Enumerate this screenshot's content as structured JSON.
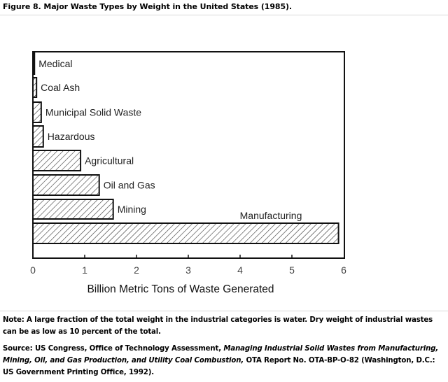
{
  "figure": {
    "title": "Figure 8. Major Waste Types by Weight in the United States (1985)."
  },
  "chart_data": {
    "type": "bar",
    "orientation": "horizontal",
    "title": "Figure 8. Major Waste Types by Weight in the United States (1985).",
    "xlabel": "Billion Metric Tons of Waste Generated",
    "ylabel": "",
    "xlim": [
      0,
      6
    ],
    "xticks": [
      0,
      1,
      2,
      3,
      4,
      5,
      6
    ],
    "grid": false,
    "legend": null,
    "fill_pattern": "diagonal-hatch",
    "categories": [
      "Medical",
      "Coal Ash",
      "Municipal Solid Waste",
      "Hazardous",
      "Agricultural",
      "Oil and Gas",
      "Mining",
      "Manufacturing"
    ],
    "values": [
      0.03,
      0.07,
      0.16,
      0.2,
      0.92,
      1.28,
      1.55,
      5.9
    ]
  },
  "footer": {
    "note": "Note: A large fraction of the total weight in the industrial categories is water. Dry weight of industrial wastes can be as low as 10 percent of the total.",
    "source_prefix": "Source: US Congress, Office of Technology Assessment, ",
    "source_title": "Managing Industrial Solid Wastes from Manufacturing, Mining, Oil, and Gas Production, and Utility Coal Combustion,",
    "source_suffix": " OTA Report No. OTA-BP-O-82 (Washington, D.C.: US Government Printing Office, 1992)."
  }
}
